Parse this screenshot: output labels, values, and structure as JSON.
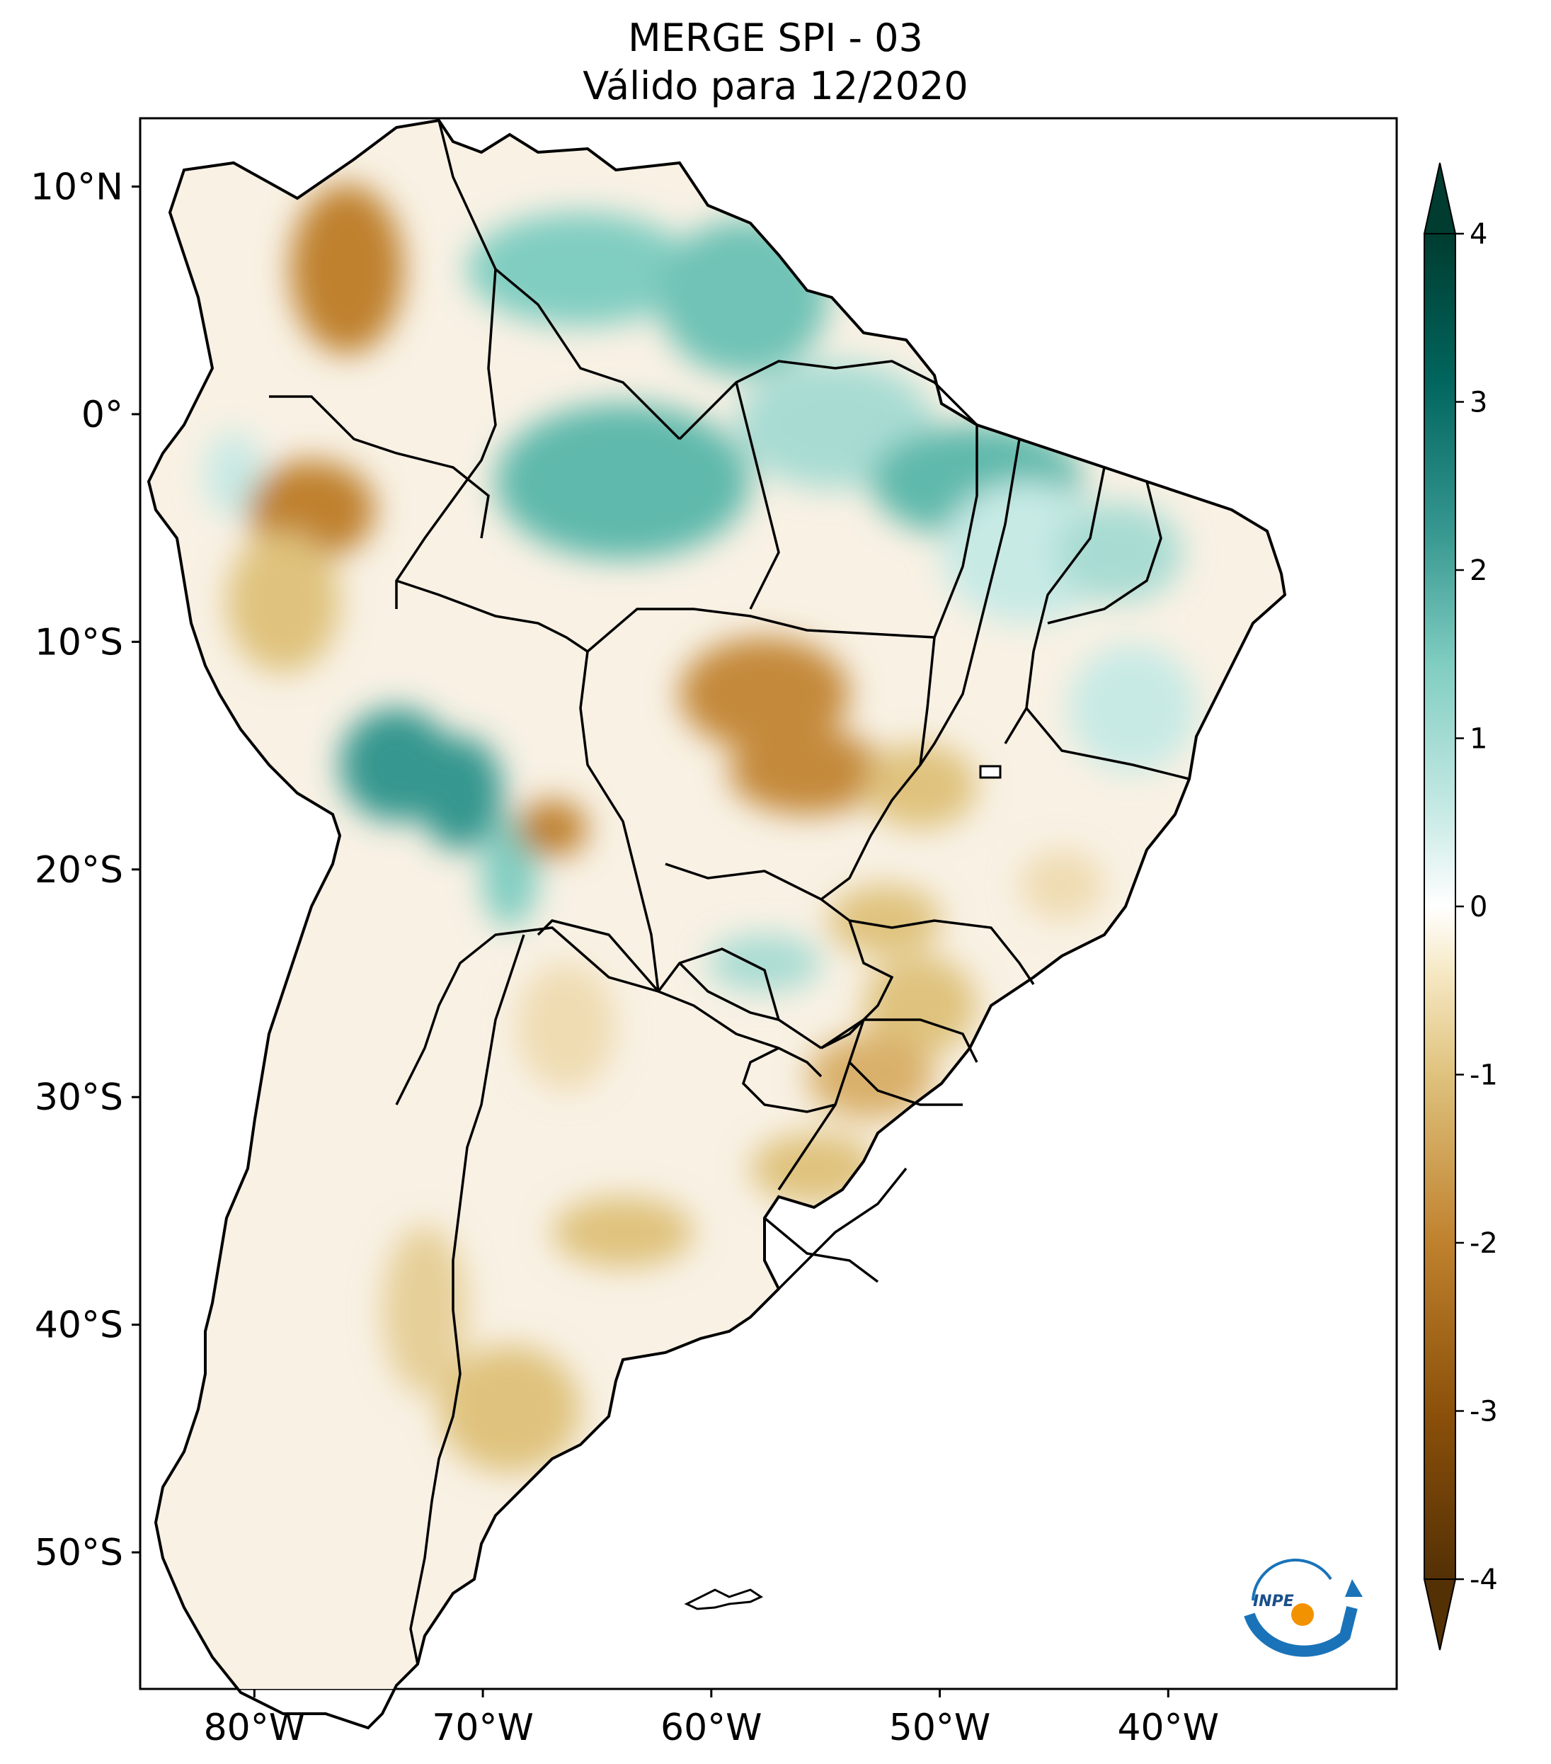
{
  "title": {
    "line1": "MERGE   SPI - 03",
    "line2": "Válido para 12/2020"
  },
  "map": {
    "type": "choropleth-grid",
    "region": "South America",
    "lon_range": [
      -85,
      -30
    ],
    "lat_range": [
      -56,
      13
    ],
    "lat_ticks": [
      {
        "value": 10,
        "label": "10°N"
      },
      {
        "value": 0,
        "label": "0°"
      },
      {
        "value": -10,
        "label": "10°S"
      },
      {
        "value": -20,
        "label": "20°S"
      },
      {
        "value": -30,
        "label": "30°S"
      },
      {
        "value": -40,
        "label": "40°S"
      },
      {
        "value": -50,
        "label": "50°S"
      }
    ],
    "lon_ticks": [
      {
        "value": -80,
        "label": "80°W"
      },
      {
        "value": -70,
        "label": "70°W"
      },
      {
        "value": -60,
        "label": "60°W"
      },
      {
        "value": -50,
        "label": "50°W"
      },
      {
        "value": -40,
        "label": "40°W"
      }
    ]
  },
  "colorbar": {
    "min": -4,
    "max": 4,
    "extend": "both",
    "ticks": [
      {
        "value": 4,
        "label": "4"
      },
      {
        "value": 3,
        "label": "3"
      },
      {
        "value": 2,
        "label": "2"
      },
      {
        "value": 1,
        "label": "1"
      },
      {
        "value": 0,
        "label": "0"
      },
      {
        "value": -1,
        "label": "-1"
      },
      {
        "value": -2,
        "label": "-2"
      },
      {
        "value": -3,
        "label": "-3"
      },
      {
        "value": -4,
        "label": "-4"
      }
    ],
    "colors": {
      "dry_extreme": "#543005",
      "dry_strong": "#8c510a",
      "dry_moderate": "#bf812d",
      "dry_light": "#dfc27d",
      "dry_faint": "#f6e8c3",
      "neutral": "#ffffff",
      "wet_faint": "#c7eae5",
      "wet_light": "#80cdc1",
      "wet_moderate": "#35978f",
      "wet_strong": "#01665e",
      "wet_extreme": "#003c30"
    }
  },
  "logo": {
    "text": "INPE",
    "colors": {
      "arc": "#1a73b8",
      "dot": "#f39200"
    }
  }
}
